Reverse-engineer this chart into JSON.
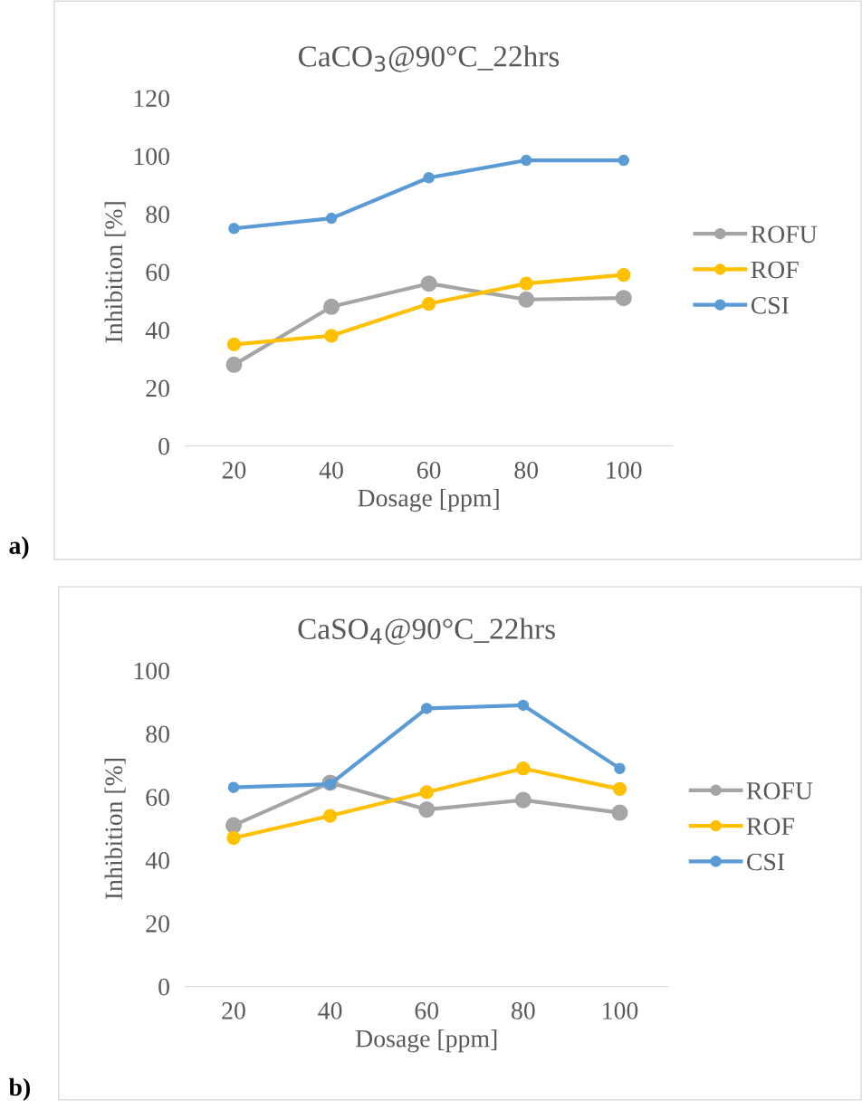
{
  "chart_data": [
    {
      "type": "line",
      "title": "CaCO$_{3}$@90°C_22hrs",
      "xlabel": "Dosage [ppm]",
      "ylabel": "Inhibition [%]",
      "categories": [
        "20",
        "40",
        "60",
        "80",
        "100"
      ],
      "ylim": [
        0,
        120
      ],
      "yticks": [
        0,
        20,
        40,
        60,
        80,
        100,
        120
      ],
      "grid": false,
      "legend": "right",
      "marker": "circle",
      "line_style": "solid",
      "annotations": [
        "a)"
      ],
      "series": [
        {
          "name": "ROFU",
          "color": "#a5a5a5",
          "values": [
            28,
            48,
            56,
            50.5,
            51
          ]
        },
        {
          "name": "ROF",
          "color": "#ffc000",
          "values": [
            35,
            38,
            49,
            56,
            59
          ]
        },
        {
          "name": "CSI",
          "color": "#5b9bd5",
          "values": [
            75,
            78.5,
            92.5,
            98.5,
            98.5
          ]
        }
      ]
    },
    {
      "type": "line",
      "title": "CaSO$_{4}$@90°C_22hrs",
      "xlabel": "Dosage [ppm]",
      "ylabel": "Inhibition [%]",
      "categories": [
        "20",
        "40",
        "60",
        "80",
        "100"
      ],
      "ylim": [
        0,
        100
      ],
      "yticks": [
        0,
        20,
        40,
        60,
        80,
        100
      ],
      "grid": false,
      "legend": "right",
      "marker": "circle",
      "line_style": "solid",
      "annotations": [
        "b)"
      ],
      "series": [
        {
          "name": "ROFU",
          "color": "#a5a5a5",
          "values": [
            51,
            64.5,
            56,
            59,
            55
          ]
        },
        {
          "name": "ROF",
          "color": "#ffc000",
          "values": [
            47,
            54,
            61.5,
            69,
            62.5
          ]
        },
        {
          "name": "CSI",
          "color": "#5b9bd5",
          "values": [
            63,
            64,
            88,
            89,
            69
          ]
        }
      ]
    }
  ]
}
